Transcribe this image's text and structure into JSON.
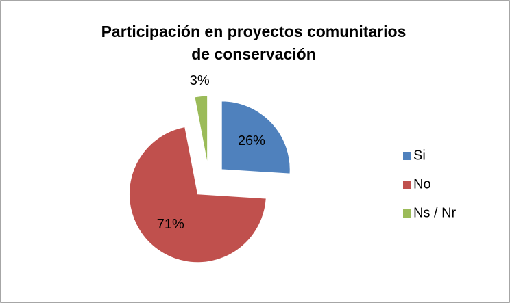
{
  "chart_data": {
    "type": "pie",
    "title": [
      "Participación en proyectos comunitarios",
      "de conservación"
    ],
    "categories": [
      "Si",
      "No",
      "Ns / Nr"
    ],
    "values": [
      26,
      71,
      3
    ],
    "value_labels": [
      "26%",
      "71%",
      "3%"
    ],
    "colors": [
      "#4f81bd",
      "#c0504d",
      "#9bbb59"
    ],
    "legend": "right"
  }
}
